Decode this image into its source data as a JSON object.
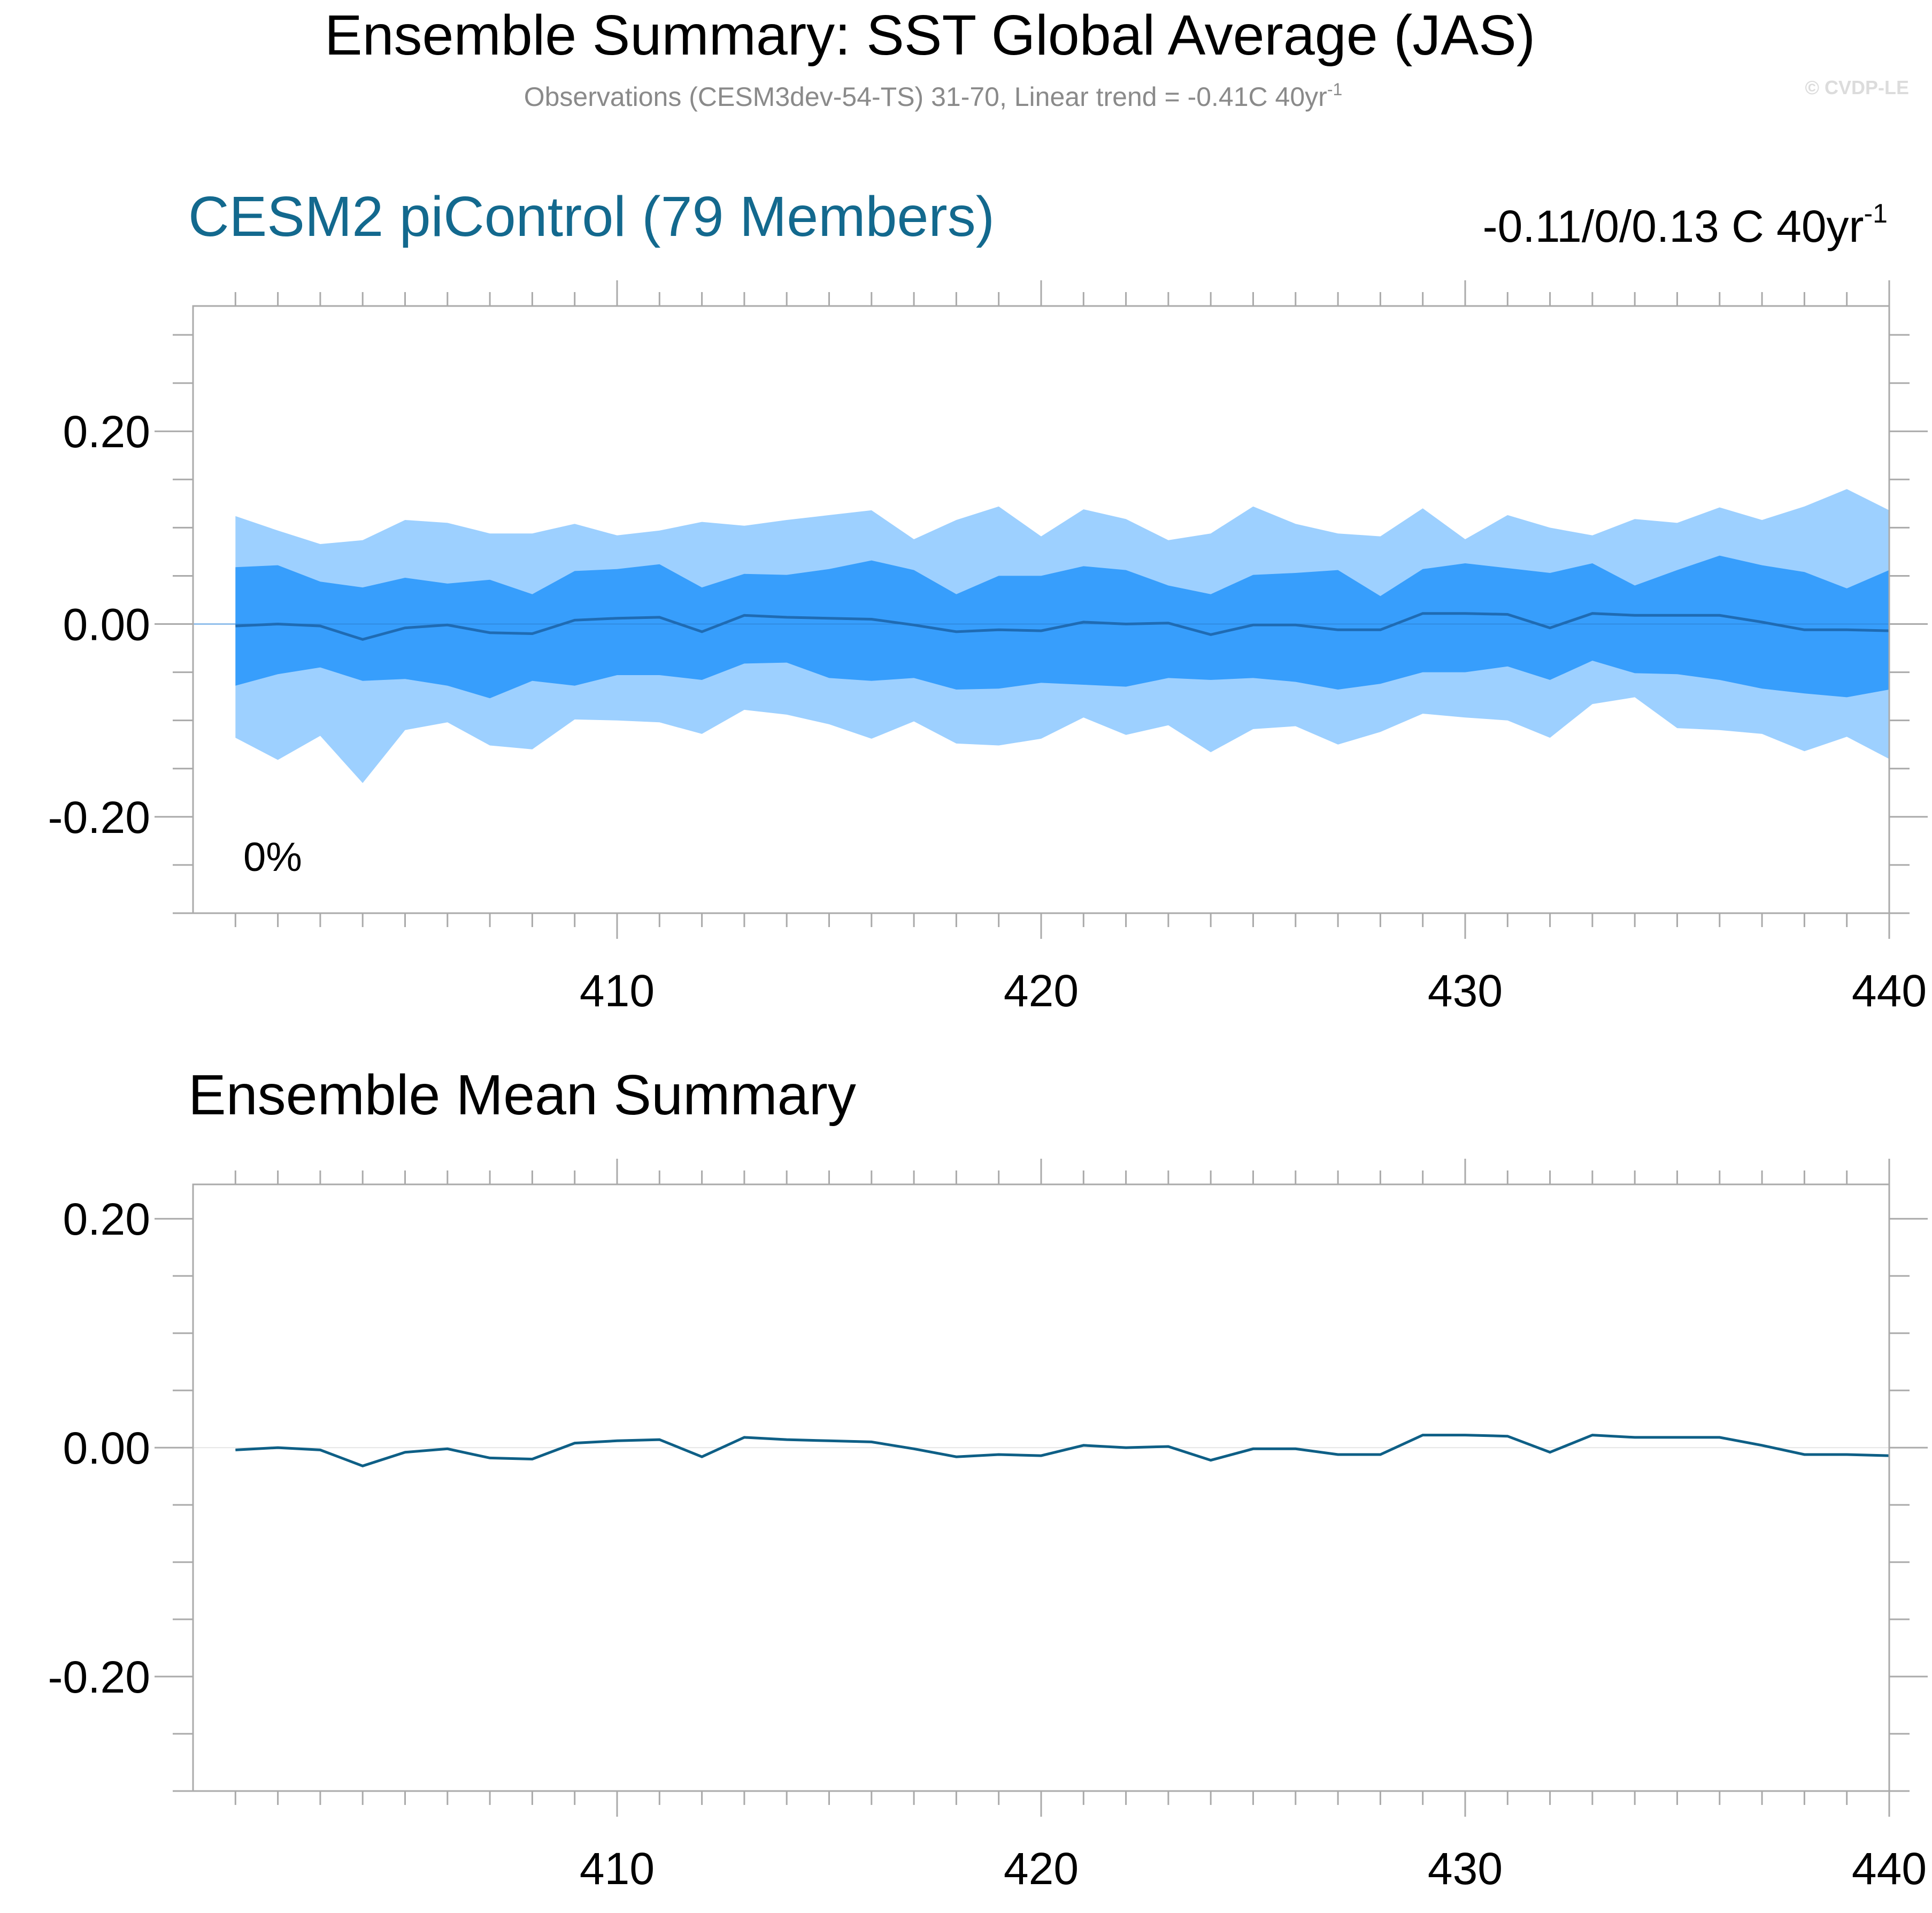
{
  "header": {
    "title": "Ensemble Summary: SST Global Average (JAS)",
    "subtitle_main": "Observations (CESM3dev-54-TS) 31-70, Linear trend = -0.41C 40yr",
    "subtitle_sup": "-1",
    "watermark": "© CVDP-LE"
  },
  "colors": {
    "outer_band": "#9dd0ff",
    "inner_band": "#379efc",
    "panel1_median": "#1f6bb3",
    "panel2_line": "#0e5f86",
    "panel1_title": "#13698e",
    "axis": "#aaaaaa"
  },
  "chart_data": [
    {
      "type": "area",
      "title": "CESM2 piControl (79 Members)",
      "trend_label": "-0.11/0/0.13 C 40yr",
      "trend_sup": "-1",
      "annotation": "0%",
      "xlim": [
        400,
        440
      ],
      "ylim": [
        -0.3,
        0.33
      ],
      "grid": false,
      "x": [
        401,
        402,
        403,
        404,
        405,
        406,
        407,
        408,
        409,
        410,
        411,
        412,
        413,
        414,
        415,
        416,
        417,
        418,
        419,
        420,
        421,
        422,
        423,
        424,
        425,
        426,
        427,
        428,
        429,
        430,
        431,
        432,
        433,
        434,
        435,
        436,
        437,
        438,
        439,
        440
      ],
      "x_ticks": [
        410,
        420,
        430,
        440
      ],
      "y_ticks": [
        -0.2,
        0.0,
        0.2
      ],
      "y_tick_labels": [
        "-0.20",
        "0.00",
        "0.20"
      ],
      "series": [
        {
          "role": "outer_upper",
          "values": [
            0.112,
            0.097,
            0.083,
            0.087,
            0.108,
            0.105,
            0.094,
            0.094,
            0.104,
            0.092,
            0.097,
            0.106,
            0.102,
            0.108,
            0.113,
            0.118,
            0.088,
            0.108,
            0.122,
            0.091,
            0.119,
            0.109,
            0.087,
            0.094,
            0.122,
            0.104,
            0.094,
            0.091,
            0.12,
            0.088,
            0.113,
            0.1,
            0.092,
            0.109,
            0.105,
            0.121,
            0.108,
            0.122,
            0.14,
            0.118
          ]
        },
        {
          "role": "outer_lower",
          "values": [
            -0.118,
            -0.141,
            -0.116,
            -0.165,
            -0.11,
            -0.102,
            -0.126,
            -0.13,
            -0.099,
            -0.1,
            -0.102,
            -0.114,
            -0.089,
            -0.094,
            -0.104,
            -0.119,
            -0.101,
            -0.124,
            -0.126,
            -0.119,
            -0.097,
            -0.115,
            -0.105,
            -0.133,
            -0.109,
            -0.106,
            -0.125,
            -0.112,
            -0.093,
            -0.097,
            -0.1,
            -0.118,
            -0.083,
            -0.076,
            -0.108,
            -0.11,
            -0.114,
            -0.132,
            -0.117,
            -0.14
          ]
        },
        {
          "role": "inner_upper",
          "values": [
            0.059,
            0.061,
            0.044,
            0.038,
            0.048,
            0.042,
            0.046,
            0.031,
            0.055,
            0.057,
            0.062,
            0.038,
            0.052,
            0.051,
            0.057,
            0.066,
            0.056,
            0.031,
            0.05,
            0.05,
            0.06,
            0.056,
            0.04,
            0.031,
            0.051,
            0.053,
            0.056,
            0.029,
            0.057,
            0.063,
            0.058,
            0.053,
            0.063,
            0.04,
            0.056,
            0.071,
            0.061,
            0.054,
            0.037,
            0.056
          ]
        },
        {
          "role": "inner_lower",
          "values": [
            -0.064,
            -0.052,
            -0.045,
            -0.059,
            -0.057,
            -0.064,
            -0.077,
            -0.059,
            -0.064,
            -0.053,
            -0.053,
            -0.058,
            -0.041,
            -0.04,
            -0.056,
            -0.059,
            -0.056,
            -0.068,
            -0.067,
            -0.061,
            -0.063,
            -0.065,
            -0.056,
            -0.058,
            -0.056,
            -0.06,
            -0.068,
            -0.062,
            -0.05,
            -0.05,
            -0.044,
            -0.058,
            -0.038,
            -0.051,
            -0.052,
            -0.058,
            -0.067,
            -0.072,
            -0.076,
            -0.068
          ]
        },
        {
          "role": "median",
          "values": [
            -0.002,
            0.0,
            -0.002,
            -0.016,
            -0.004,
            -0.001,
            -0.009,
            -0.01,
            0.004,
            0.006,
            0.007,
            -0.008,
            0.009,
            0.007,
            0.006,
            0.005,
            -0.001,
            -0.008,
            -0.006,
            -0.007,
            0.002,
            0.0,
            0.001,
            -0.011,
            -0.001,
            -0.001,
            -0.006,
            -0.006,
            0.011,
            0.011,
            0.01,
            -0.004,
            0.011,
            0.009,
            0.009,
            0.009,
            0.002,
            -0.006,
            -0.006,
            -0.007
          ]
        }
      ]
    },
    {
      "type": "line",
      "title": "Ensemble Mean Summary",
      "xlim": [
        400,
        440
      ],
      "ylim": [
        -0.3,
        0.23
      ],
      "grid": false,
      "x": [
        401,
        402,
        403,
        404,
        405,
        406,
        407,
        408,
        409,
        410,
        411,
        412,
        413,
        414,
        415,
        416,
        417,
        418,
        419,
        420,
        421,
        422,
        423,
        424,
        425,
        426,
        427,
        428,
        429,
        430,
        431,
        432,
        433,
        434,
        435,
        436,
        437,
        438,
        439,
        440
      ],
      "x_ticks": [
        410,
        420,
        430,
        440
      ],
      "y_ticks": [
        -0.2,
        0.0,
        0.2
      ],
      "y_tick_labels": [
        "-0.20",
        "0.00",
        "0.20"
      ],
      "series": [
        {
          "role": "mean",
          "values": [
            -0.002,
            0.0,
            -0.002,
            -0.016,
            -0.004,
            -0.001,
            -0.009,
            -0.01,
            0.004,
            0.006,
            0.007,
            -0.008,
            0.009,
            0.007,
            0.006,
            0.005,
            -0.001,
            -0.008,
            -0.006,
            -0.007,
            0.002,
            0.0,
            0.001,
            -0.011,
            -0.001,
            -0.001,
            -0.006,
            -0.006,
            0.011,
            0.011,
            0.01,
            -0.004,
            0.011,
            0.009,
            0.009,
            0.009,
            0.002,
            -0.006,
            -0.006,
            -0.007
          ]
        }
      ]
    }
  ]
}
